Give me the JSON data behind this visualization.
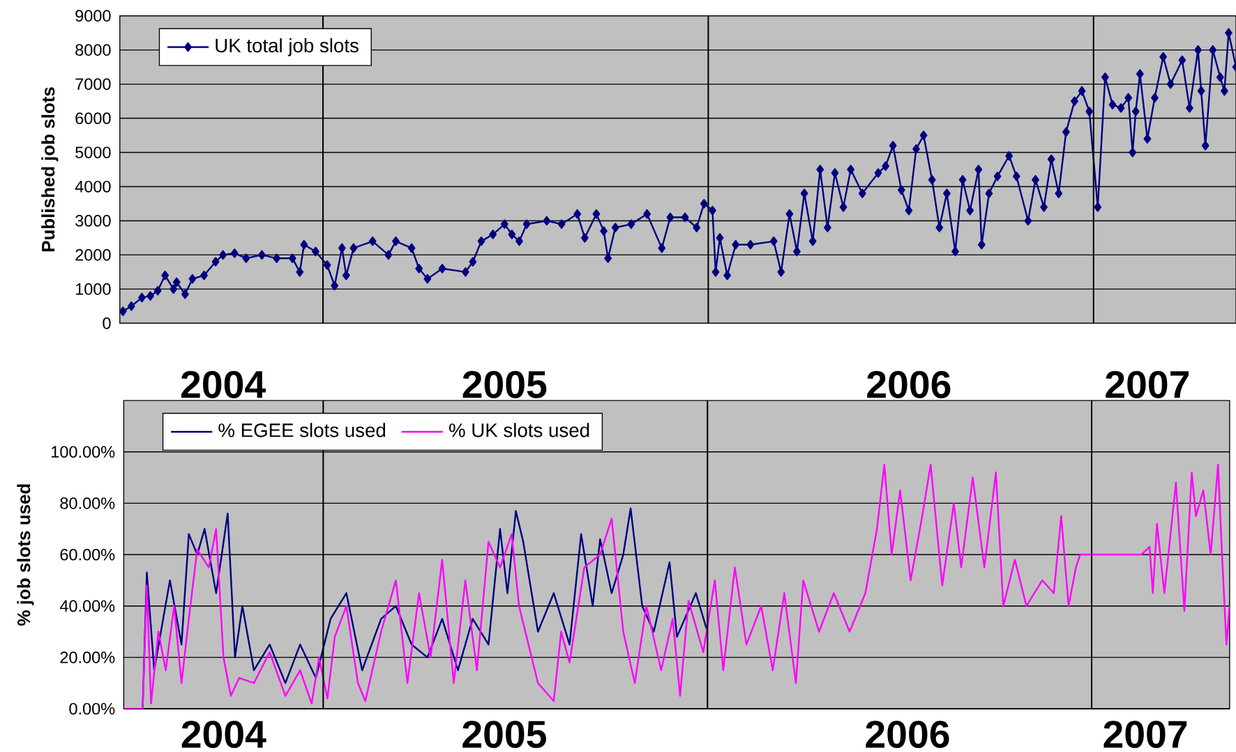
{
  "chart_data": [
    {
      "type": "line",
      "ylabel": "Published job slots",
      "xlim": [
        "2004-06-22",
        "2007-05-16"
      ],
      "ylim": [
        0,
        9000
      ],
      "xticks": [
        {
          "value": "2004-09-28",
          "label": "2004"
        },
        {
          "value": "2005-06-22",
          "label": "2005"
        },
        {
          "value": "2006-07-10",
          "label": "2006"
        },
        {
          "value": "2007-02-21",
          "label": "2007"
        }
      ],
      "yticks": [
        0,
        1000,
        2000,
        3000,
        4000,
        5000,
        6000,
        7000,
        8000,
        9000
      ],
      "grid": "y",
      "legend": "top left",
      "marker": "diamond",
      "ref_lines": [
        {
          "axis": "x",
          "value": "2005-01-01",
          "color": "#000000"
        },
        {
          "axis": "x",
          "value": "2006-01-01",
          "color": "#000000"
        },
        {
          "axis": "x",
          "value": "2007-01-01",
          "color": "#000000"
        }
      ],
      "x": [
        "2004-06-25",
        "2004-07-03",
        "2004-07-13",
        "2004-07-21",
        "2004-07-28",
        "2004-08-04",
        "2004-08-12",
        "2004-08-15",
        "2004-08-23",
        "2004-08-30",
        "2004-09-10",
        "2004-09-21",
        "2004-09-28",
        "2004-10-09",
        "2004-10-20",
        "2004-11-04",
        "2004-11-18",
        "2004-12-03",
        "2004-12-10",
        "2004-12-14",
        "2004-12-25",
        "2005-01-05",
        "2005-01-12",
        "2005-01-19",
        "2005-01-23",
        "2005-01-30",
        "2005-02-17",
        "2005-03-04",
        "2005-03-11",
        "2005-03-26",
        "2005-04-02",
        "2005-04-10",
        "2005-04-24",
        "2005-05-16",
        "2005-05-23",
        "2005-05-31",
        "2005-06-11",
        "2005-06-22",
        "2005-06-29",
        "2005-07-06",
        "2005-07-13",
        "2005-08-01",
        "2005-08-15",
        "2005-08-30",
        "2005-09-06",
        "2005-09-17",
        "2005-09-24",
        "2005-09-28",
        "2005-10-05",
        "2005-10-20",
        "2005-11-04",
        "2005-11-18",
        "2005-11-26",
        "2005-12-10",
        "2005-12-21",
        "2005-12-28",
        "2006-01-05",
        "2006-01-08",
        "2006-01-12",
        "2006-01-19",
        "2006-01-27",
        "2006-02-10",
        "2006-03-04",
        "2006-03-11",
        "2006-03-19",
        "2006-03-26",
        "2006-04-02",
        "2006-04-10",
        "2006-04-17",
        "2006-04-24",
        "2006-05-01",
        "2006-05-09",
        "2006-05-16",
        "2006-05-27",
        "2006-06-11",
        "2006-06-18",
        "2006-06-25",
        "2006-07-03",
        "2006-07-10",
        "2006-07-17",
        "2006-07-24",
        "2006-08-01",
        "2006-08-08",
        "2006-08-15",
        "2006-08-23",
        "2006-08-30",
        "2006-09-06",
        "2006-09-14",
        "2006-09-17",
        "2006-09-24",
        "2006-10-02",
        "2006-10-13",
        "2006-10-20",
        "2006-10-31",
        "2006-11-07",
        "2006-11-15",
        "2006-11-22",
        "2006-11-29",
        "2006-12-06",
        "2006-12-14",
        "2006-12-21",
        "2006-12-28",
        "2007-01-05",
        "2007-01-12",
        "2007-01-19",
        "2007-01-27",
        "2007-02-03",
        "2007-02-07",
        "2007-02-10",
        "2007-02-14",
        "2007-02-21",
        "2007-02-28",
        "2007-03-08",
        "2007-03-15",
        "2007-03-26",
        "2007-04-02",
        "2007-04-10",
        "2007-04-13",
        "2007-04-17",
        "2007-04-24",
        "2007-05-01",
        "2007-05-05",
        "2007-05-09",
        "2007-05-16"
      ],
      "series": [
        {
          "name": "UK total job slots",
          "color": "#000080",
          "values": [
            350,
            500,
            750,
            800,
            950,
            1400,
            1000,
            1200,
            850,
            1300,
            1400,
            1800,
            2000,
            2050,
            1900,
            2000,
            1900,
            1900,
            1500,
            2300,
            2100,
            1700,
            1100,
            2200,
            1400,
            2200,
            2400,
            2000,
            2400,
            2200,
            1600,
            1300,
            1600,
            1500,
            1800,
            2400,
            2600,
            2900,
            2600,
            2400,
            2900,
            3000,
            2900,
            3200,
            2500,
            3200,
            2700,
            1900,
            2800,
            2900,
            3200,
            2200,
            3100,
            3100,
            2800,
            3500,
            3300,
            1500,
            2500,
            1400,
            2300,
            2300,
            2400,
            1500,
            3200,
            2100,
            3800,
            2400,
            4500,
            2800,
            4400,
            3400,
            4500,
            3800,
            4400,
            4600,
            5200,
            3900,
            3300,
            5100,
            5500,
            4200,
            2800,
            3800,
            2100,
            4200,
            3300,
            4500,
            2300,
            3800,
            4300,
            4900,
            4300,
            3000,
            4200,
            3400,
            4800,
            3800,
            5600,
            6500,
            6800,
            6200,
            3400,
            7200,
            6400,
            6300,
            6600,
            5000,
            6200,
            7300,
            5400,
            6600,
            7800,
            7000,
            7700,
            6300,
            8000,
            6800,
            5200,
            8000,
            7200,
            6800,
            8500,
            7500
          ]
        }
      ]
    },
    {
      "type": "line",
      "ylabel": "% job slots used",
      "xlim": [
        "2004-06-25",
        "2007-05-12"
      ],
      "ylim": [
        0,
        120
      ],
      "xticks": [
        {
          "value": "2004-09-28",
          "label": "2004"
        },
        {
          "value": "2005-06-22",
          "label": "2005"
        },
        {
          "value": "2006-07-10",
          "label": "2006"
        },
        {
          "value": "2007-02-21",
          "label": "2007"
        }
      ],
      "yticks": [
        {
          "value": 0,
          "label": "0.00%"
        },
        {
          "value": 20,
          "label": "20.00%"
        },
        {
          "value": 40,
          "label": "40.00%"
        },
        {
          "value": 60,
          "label": "60.00%"
        },
        {
          "value": 80,
          "label": "80.00%"
        },
        {
          "value": 100,
          "label": "100.00%"
        }
      ],
      "grid": "y",
      "legend": "top left",
      "ref_lines": [
        {
          "axis": "x",
          "value": "2005-01-01",
          "color": "#000000"
        },
        {
          "axis": "x",
          "value": "2006-01-01",
          "color": "#000000"
        },
        {
          "axis": "x",
          "value": "2007-01-01",
          "color": "#000000"
        }
      ],
      "series": [
        {
          "name": "% EGEE slots used",
          "color": "#000080",
          "x": [
            "2004-07-13",
            "2004-07-17",
            "2004-07-24",
            "2004-08-08",
            "2004-08-19",
            "2004-08-26",
            "2004-09-03",
            "2004-09-10",
            "2004-09-21",
            "2004-10-02",
            "2004-10-09",
            "2004-10-16",
            "2004-10-27",
            "2004-11-11",
            "2004-11-26",
            "2004-12-10",
            "2004-12-25",
            "2005-01-08",
            "2005-01-23",
            "2005-02-07",
            "2005-02-25",
            "2005-03-11",
            "2005-03-26",
            "2005-04-10",
            "2005-04-24",
            "2005-05-09",
            "2005-05-23",
            "2005-06-07",
            "2005-06-18",
            "2005-06-25",
            "2005-07-03",
            "2005-07-10",
            "2005-07-24",
            "2005-08-08",
            "2005-08-23",
            "2005-09-03",
            "2005-09-14",
            "2005-09-21",
            "2005-10-02",
            "2005-10-13",
            "2005-10-20",
            "2005-10-31",
            "2005-11-11",
            "2005-11-26",
            "2005-12-03",
            "2005-12-21",
            "2006-01-01"
          ],
          "values": [
            0,
            53,
            15,
            50,
            25,
            68,
            60,
            70,
            45,
            76,
            20,
            40,
            15,
            25,
            10,
            25,
            12,
            35,
            45,
            15,
            35,
            40,
            25,
            20,
            35,
            15,
            35,
            25,
            70,
            45,
            77,
            65,
            30,
            45,
            25,
            68,
            40,
            66,
            45,
            60,
            78,
            40,
            30,
            57,
            28,
            45,
            30
          ]
        },
        {
          "name": "% UK slots used",
          "color": "#ff00ff",
          "x": [
            "2004-06-25",
            "2004-07-13",
            "2004-07-17",
            "2004-07-21",
            "2004-07-28",
            "2004-08-04",
            "2004-08-12",
            "2004-08-19",
            "2004-08-26",
            "2004-09-03",
            "2004-09-14",
            "2004-09-21",
            "2004-09-28",
            "2004-10-05",
            "2004-10-13",
            "2004-10-27",
            "2004-11-11",
            "2004-11-26",
            "2004-12-10",
            "2004-12-21",
            "2004-12-28",
            "2005-01-05",
            "2005-01-12",
            "2005-01-23",
            "2005-02-03",
            "2005-02-10",
            "2005-02-25",
            "2005-03-11",
            "2005-03-22",
            "2005-04-02",
            "2005-04-13",
            "2005-04-24",
            "2005-05-05",
            "2005-05-16",
            "2005-05-27",
            "2005-06-07",
            "2005-06-18",
            "2005-06-29",
            "2005-07-06",
            "2005-07-24",
            "2005-08-08",
            "2005-08-15",
            "2005-08-23",
            "2005-09-06",
            "2005-09-21",
            "2005-10-02",
            "2005-10-13",
            "2005-10-24",
            "2005-11-04",
            "2005-11-18",
            "2005-11-29",
            "2005-12-06",
            "2005-12-14",
            "2005-12-28",
            "2006-01-08",
            "2006-01-16",
            "2006-01-27",
            "2006-02-07",
            "2006-02-21",
            "2006-03-04",
            "2006-03-15",
            "2006-03-26",
            "2006-04-02",
            "2006-04-17",
            "2006-05-01",
            "2006-05-16",
            "2006-05-31",
            "2006-06-11",
            "2006-06-18",
            "2006-06-25",
            "2006-07-03",
            "2006-07-13",
            "2006-07-24",
            "2006-08-01",
            "2006-08-12",
            "2006-08-23",
            "2006-08-30",
            "2006-09-10",
            "2006-09-21",
            "2006-10-02",
            "2006-10-09",
            "2006-10-20",
            "2006-10-31",
            "2006-11-15",
            "2006-11-26",
            "2006-12-03",
            "2006-12-10",
            "2006-12-17",
            "2006-12-21",
            "2007-02-17",
            "2007-02-25",
            "2007-02-28",
            "2007-03-04",
            "2007-03-11",
            "2007-03-22",
            "2007-03-30",
            "2007-04-06",
            "2007-04-10",
            "2007-04-17",
            "2007-04-24",
            "2007-05-01",
            "2007-05-05",
            "2007-05-09",
            "2007-05-12"
          ],
          "values": [
            0,
            0,
            48,
            2,
            30,
            15,
            40,
            10,
            35,
            62,
            55,
            70,
            20,
            5,
            12,
            10,
            22,
            5,
            15,
            2,
            20,
            4,
            28,
            40,
            10,
            3,
            30,
            50,
            10,
            45,
            20,
            58,
            10,
            50,
            15,
            65,
            55,
            68,
            40,
            10,
            3,
            30,
            18,
            55,
            60,
            74,
            30,
            10,
            40,
            15,
            35,
            5,
            42,
            22,
            50,
            15,
            55,
            25,
            40,
            15,
            45,
            10,
            50,
            30,
            45,
            30,
            45,
            70,
            95,
            60,
            85,
            50,
            75,
            95,
            48,
            80,
            55,
            90,
            55,
            92,
            40,
            58,
            40,
            50,
            45,
            75,
            40,
            55,
            60,
            60,
            63,
            45,
            72,
            45,
            88,
            38,
            92,
            75,
            85,
            60,
            95,
            58,
            25,
            40
          ]
        }
      ]
    }
  ]
}
